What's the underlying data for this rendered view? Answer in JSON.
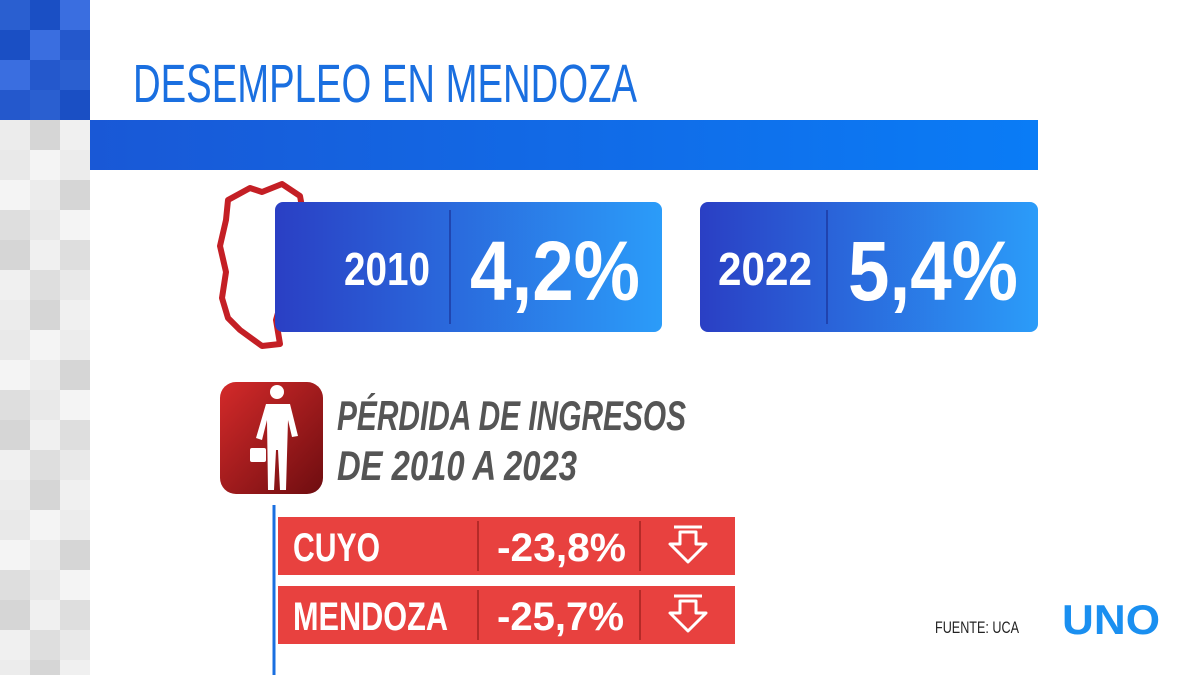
{
  "header": {
    "title": "DESEMPLEO EN MENDOZA"
  },
  "unemployment": [
    {
      "year": "2010",
      "rate": "4,2%"
    },
    {
      "year": "2022",
      "rate": "5,4%"
    }
  ],
  "income_loss": {
    "title_lines": [
      "PÉRDIDA DE INGRESOS",
      "DE 2010 A 2023"
    ],
    "rows": [
      {
        "region": "CUYO",
        "change": "-23,8%"
      },
      {
        "region": "MENDOZA",
        "change": "-25,7%"
      }
    ]
  },
  "footer": {
    "source": "FUENTE: UCA",
    "logo": "UNO"
  }
}
